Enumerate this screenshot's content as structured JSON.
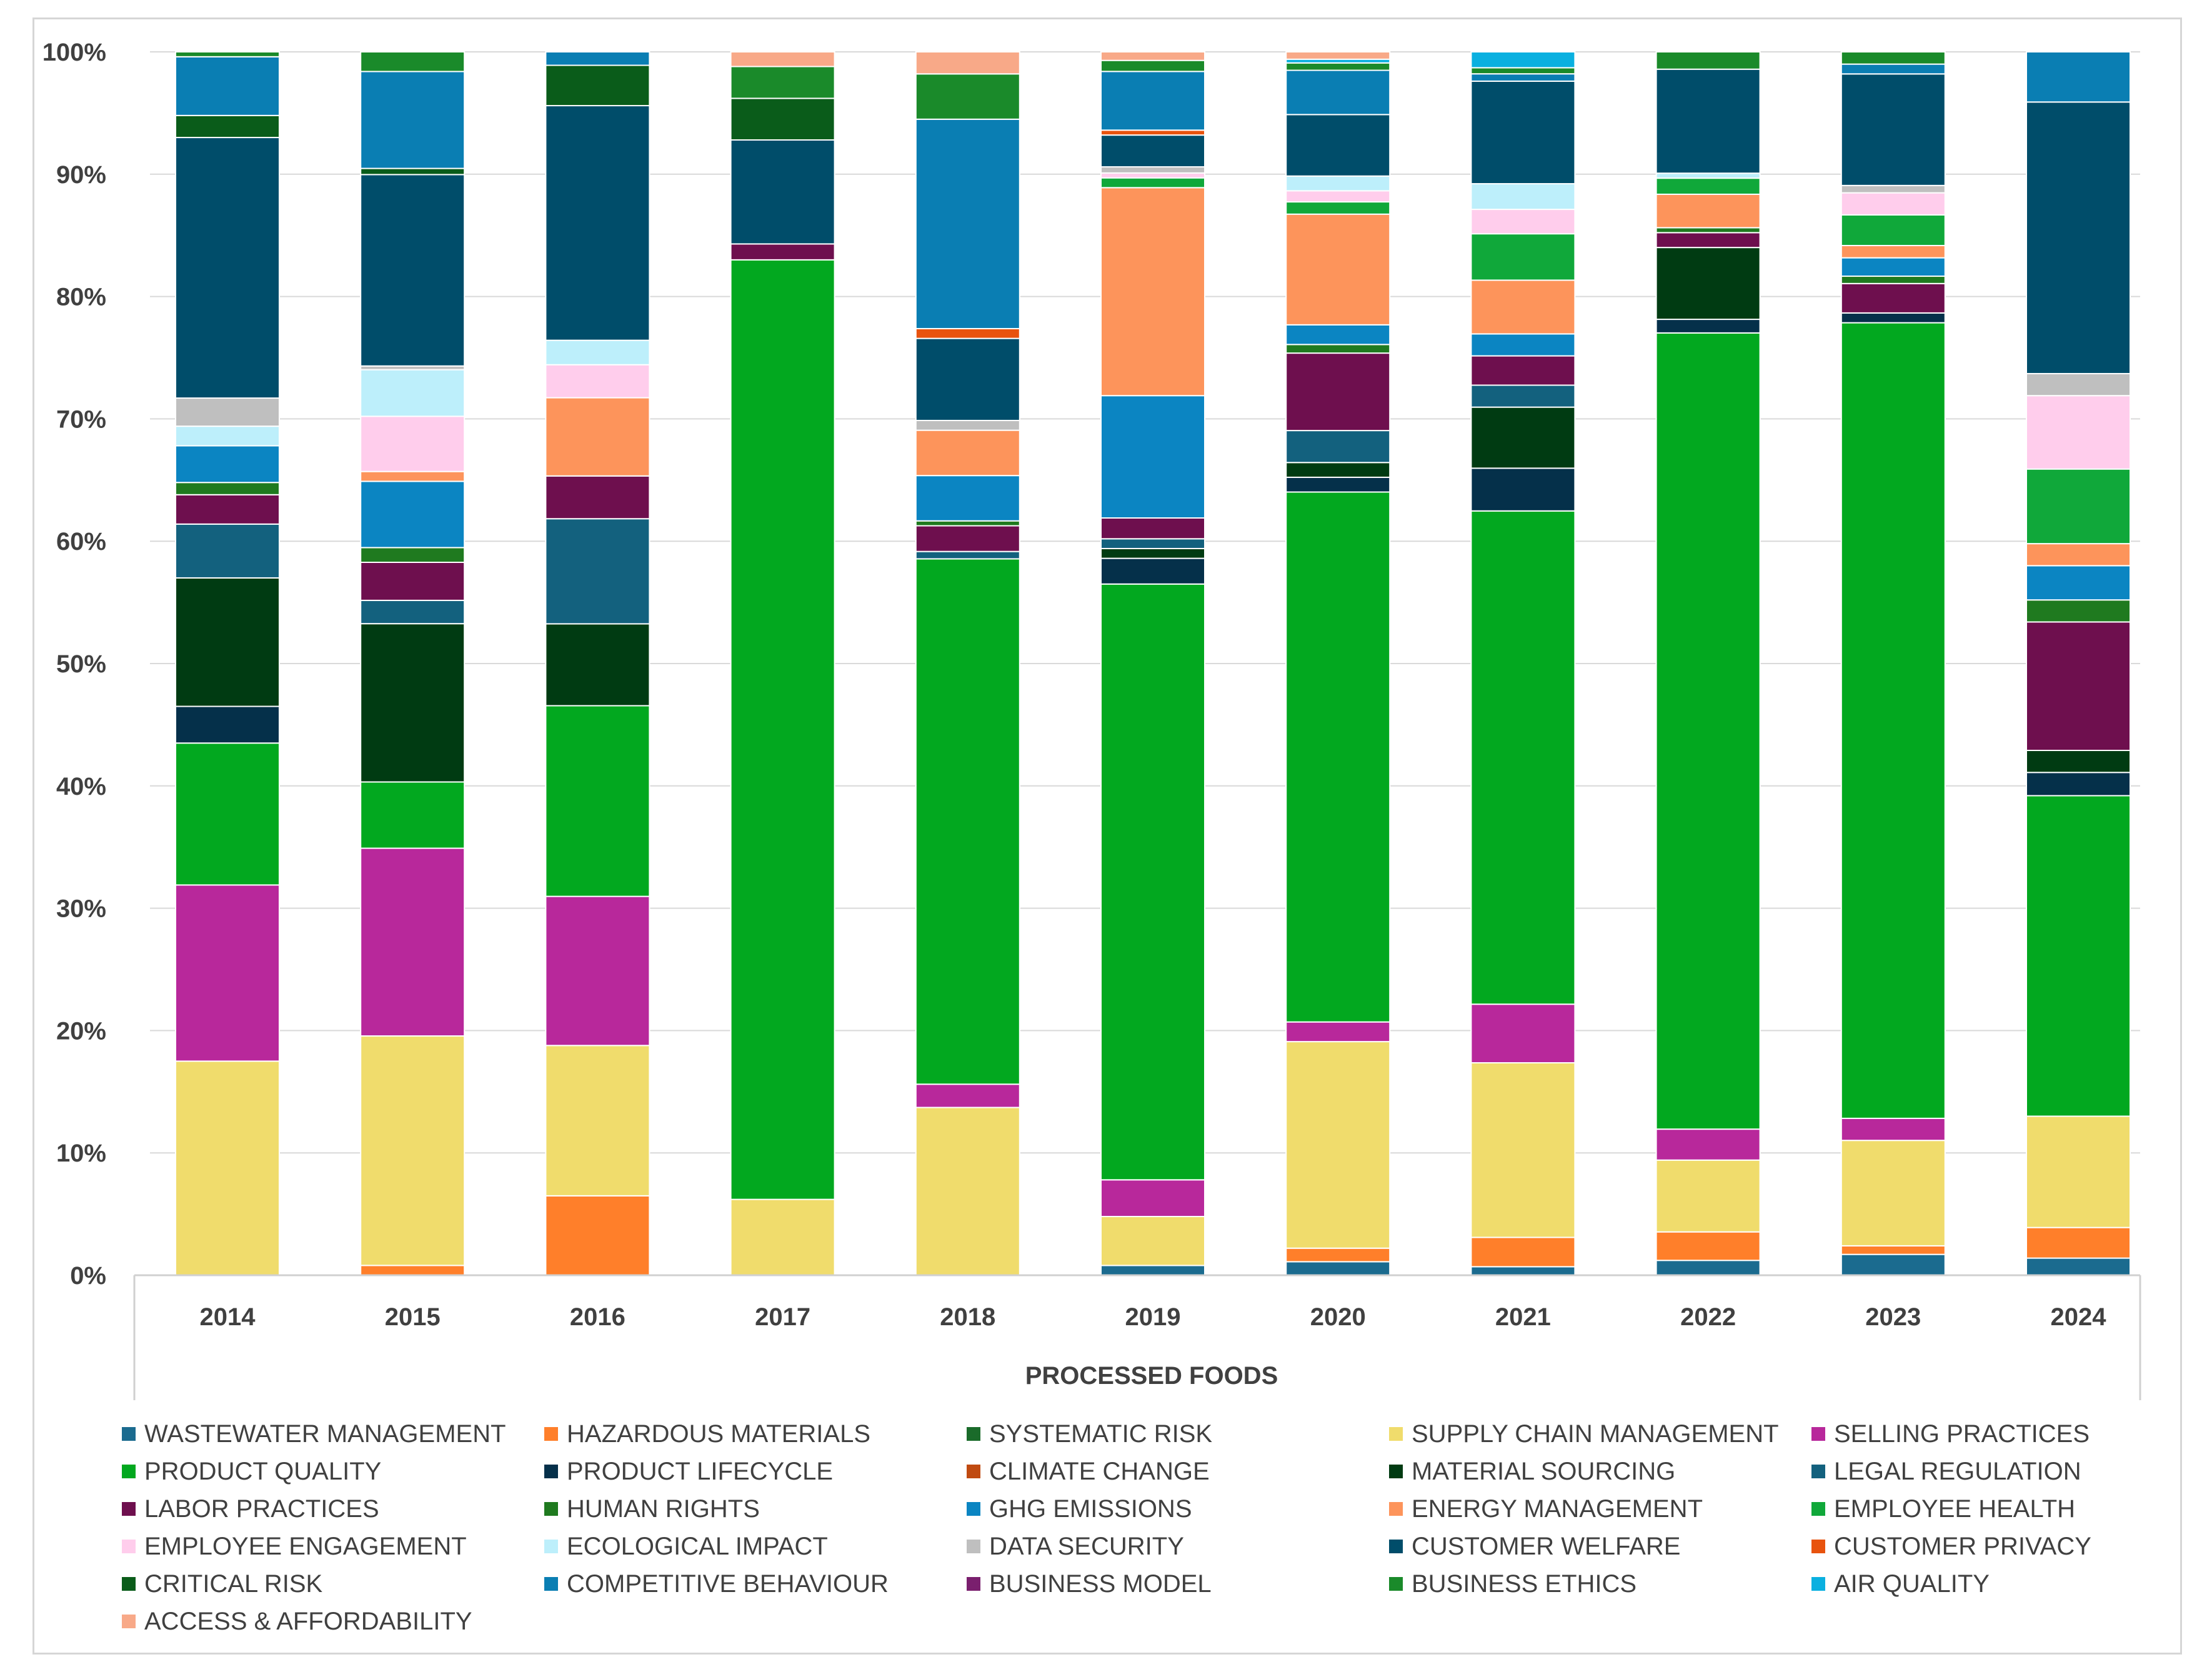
{
  "chart_data": {
    "type": "bar",
    "stacked": true,
    "percent": true,
    "title": "",
    "xlabel": "PROCESSED FOODS",
    "ylabel": "",
    "ylim": [
      0,
      100
    ],
    "yticks": [
      "0%",
      "10%",
      "20%",
      "30%",
      "40%",
      "50%",
      "60%",
      "70%",
      "80%",
      "90%",
      "100%"
    ],
    "categories": [
      "2014",
      "2015",
      "2016",
      "2017",
      "2018",
      "2019",
      "2020",
      "2021",
      "2022",
      "2023",
      "2024"
    ],
    "series": [
      {
        "name": "WASTEWATER MANAGEMENT",
        "color": "#1b6b8f",
        "values": [
          0,
          0,
          0,
          0,
          0,
          0.8,
          1.1,
          0.7,
          1.2,
          1.7,
          1.4
        ]
      },
      {
        "name": "HAZARDOUS MATERIALS",
        "color": "#ff7f2a",
        "values": [
          0,
          0.8,
          6.5,
          0,
          0,
          0,
          1.1,
          2.4,
          2.3,
          0.7,
          2.5
        ]
      },
      {
        "name": "SYSTEMATIC RISK",
        "color": "#1a6b2a",
        "values": [
          0,
          0,
          0,
          0,
          0,
          0,
          0,
          0,
          0,
          0,
          0
        ]
      },
      {
        "name": "SUPPLY CHAIN MANAGEMENT",
        "color": "#f0dc6c",
        "values": [
          17.5,
          18.7,
          12.3,
          6.2,
          13.7,
          4.0,
          16.8,
          14.3,
          5.8,
          8.6,
          9.1
        ]
      },
      {
        "name": "SELLING PRACTICES",
        "color": "#b8289b",
        "values": [
          14.4,
          15.3,
          12.2,
          0,
          1.9,
          3.0,
          1.6,
          4.8,
          2.5,
          1.8,
          0
        ]
      },
      {
        "name": "PRODUCT QUALITY",
        "color": "#02a81f",
        "values": [
          11.6,
          5.4,
          15.6,
          76.8,
          42.9,
          48.7,
          43.1,
          40.4,
          64.3,
          64.9,
          26.2
        ]
      },
      {
        "name": "PRODUCT LIFECYCLE",
        "color": "#05304a",
        "values": [
          3.0,
          0,
          0,
          0,
          0,
          2.1,
          1.2,
          3.5,
          1.1,
          0.8,
          1.9
        ]
      },
      {
        "name": "CLIMATE CHANGE",
        "color": "#c04a10",
        "values": [
          0,
          0,
          0,
          0,
          0,
          0,
          0,
          0,
          0,
          0,
          0
        ]
      },
      {
        "name": "MATERIAL SOURCING",
        "color": "#003b12",
        "values": [
          10.5,
          12.9,
          6.7,
          0,
          0,
          0.8,
          1.2,
          5.0,
          5.8,
          0,
          1.8
        ]
      },
      {
        "name": "LEGAL REGULATION",
        "color": "#13617e",
        "values": [
          4.4,
          1.9,
          8.6,
          0,
          0.6,
          0.8,
          2.6,
          1.8,
          0,
          0,
          0
        ]
      },
      {
        "name": "LABOR PRACTICES",
        "color": "#6e0f4e",
        "values": [
          2.4,
          3.1,
          3.5,
          1.3,
          2.1,
          1.7,
          6.3,
          2.4,
          1.2,
          2.4,
          10.5
        ]
      },
      {
        "name": "HUMAN RIGHTS",
        "color": "#1f7a1f",
        "values": [
          1.0,
          1.2,
          0,
          0,
          0.4,
          0,
          0.7,
          0,
          0.4,
          0.6,
          1.8
        ]
      },
      {
        "name": "GHG EMISSIONS",
        "color": "#0b85c2",
        "values": [
          3.0,
          5.4,
          0,
          0,
          3.7,
          10.0,
          1.6,
          1.8,
          0,
          1.5,
          2.8
        ]
      },
      {
        "name": "ENERGY MANAGEMENT",
        "color": "#fd945b",
        "values": [
          0,
          0.8,
          6.4,
          0,
          3.7,
          17.0,
          9.0,
          4.4,
          2.7,
          1.0,
          1.8
        ]
      },
      {
        "name": "EMPLOYEE HEALTH",
        "color": "#10a83a",
        "values": [
          0,
          0,
          0,
          0,
          0,
          0.8,
          1.0,
          3.8,
          1.3,
          2.5,
          6.1
        ]
      },
      {
        "name": "EMPLOYEE ENGAGEMENT",
        "color": "#ffcdec",
        "values": [
          0,
          4.5,
          2.7,
          0,
          0,
          0.4,
          0.9,
          2.0,
          0,
          1.8,
          6.0
        ]
      },
      {
        "name": "ECOLOGICAL IMPACT",
        "color": "#bdeffb",
        "values": [
          1.6,
          3.8,
          2.0,
          0,
          0,
          0,
          1.2,
          2.1,
          0.4,
          0,
          0
        ]
      },
      {
        "name": "DATA SECURITY",
        "color": "#bfbfbf",
        "values": [
          2.3,
          0.3,
          0,
          0,
          0.8,
          0.5,
          0,
          0,
          0,
          0.6,
          1.8
        ]
      },
      {
        "name": "CUSTOMER WELFARE",
        "color": "#004d6a",
        "values": [
          21.3,
          15.6,
          19.2,
          8.5,
          6.7,
          2.6,
          5.0,
          8.4,
          8.4,
          9.1,
          22.2
        ]
      },
      {
        "name": "CUSTOMER PRIVACY",
        "color": "#e8530e",
        "values": [
          0,
          0,
          0,
          0,
          0.8,
          0.4,
          0,
          0,
          0,
          0,
          0
        ]
      },
      {
        "name": "CRITICAL RISK",
        "color": "#0a5c1a",
        "values": [
          1.8,
          0.5,
          3.3,
          3.4,
          0,
          0,
          0,
          0,
          0,
          0,
          0
        ]
      },
      {
        "name": "COMPETITIVE BEHAVIOUR",
        "color": "#0a7eb3",
        "values": [
          4.8,
          7.9,
          1.1,
          0,
          17.1,
          4.8,
          3.6,
          0.6,
          0,
          0.8,
          4.1
        ]
      },
      {
        "name": "BUSINESS MODEL",
        "color": "#7a1f6e",
        "values": [
          0,
          0,
          0,
          0,
          0,
          0,
          0,
          0,
          0,
          0,
          0
        ]
      },
      {
        "name": "BUSINESS ETHICS",
        "color": "#1a8a2a",
        "values": [
          0.4,
          1.6,
          0,
          2.6,
          3.7,
          0.9,
          0.6,
          0.5,
          1.4,
          1.0,
          0
        ]
      },
      {
        "name": "AIR QUALITY",
        "color": "#0ab0e0",
        "values": [
          0,
          0,
          0,
          0,
          0,
          0,
          0.3,
          1.3,
          0,
          0,
          0
        ]
      },
      {
        "name": "ACCESS & AFFORDABILITY",
        "color": "#f8a988",
        "values": [
          0,
          0,
          0,
          1.2,
          1.8,
          0.7,
          0.6,
          0,
          0,
          0,
          0
        ]
      }
    ]
  }
}
